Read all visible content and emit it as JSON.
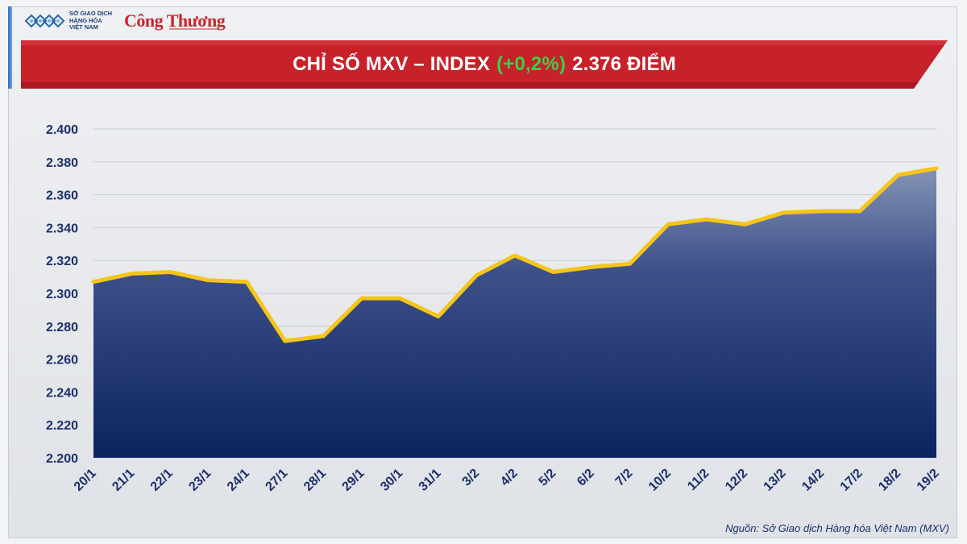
{
  "header": {
    "logo_mxv_text": "SỞ GIAO DỊCH HÀNG HÓA VIỆT NAM",
    "logo_ct_text": "Công Thương"
  },
  "banner": {
    "title_prefix": "CHỈ SỐ MXV – INDEX",
    "change": "(+0,2%)",
    "title_suffix": "2.376 ĐIỂM"
  },
  "colors": {
    "banner_red": "#c7212a",
    "change_green": "#3ccf4a",
    "line_gold": "#f5c518",
    "area_top": "#8593b5",
    "area_bottom": "#0c2360"
  },
  "chart_data": {
    "type": "area",
    "x": [
      "20/1",
      "21/1",
      "22/1",
      "23/1",
      "24/1",
      "27/1",
      "28/1",
      "29/1",
      "30/1",
      "31/1",
      "3/2",
      "4/2",
      "5/2",
      "6/2",
      "7/2",
      "10/2",
      "11/2",
      "12/2",
      "13/2",
      "14/2",
      "17/2",
      "18/2",
      "19/2"
    ],
    "series": [
      {
        "values": [
          2307,
          2312,
          2313,
          2308,
          2307,
          2271,
          2274,
          2297,
          2297,
          2286,
          2311,
          2323,
          2313,
          2316,
          2318,
          2342,
          2345,
          2342,
          2349,
          2350,
          2350,
          2372,
          2376
        ]
      }
    ],
    "ylim": [
      2200,
      2400
    ],
    "yticks": [
      2200,
      2220,
      2240,
      2260,
      2280,
      2300,
      2320,
      2340,
      2360,
      2380,
      2400
    ],
    "ytick_labels": [
      "2.200",
      "2.220",
      "2.240",
      "2.260",
      "2.280",
      "2.300",
      "2.320",
      "2.340",
      "2.360",
      "2.380",
      "2.400"
    ],
    "grid": true
  },
  "footer": {
    "source": "Nguồn: Sở Giao dịch Hàng hóa Việt Nam (MXV)"
  }
}
